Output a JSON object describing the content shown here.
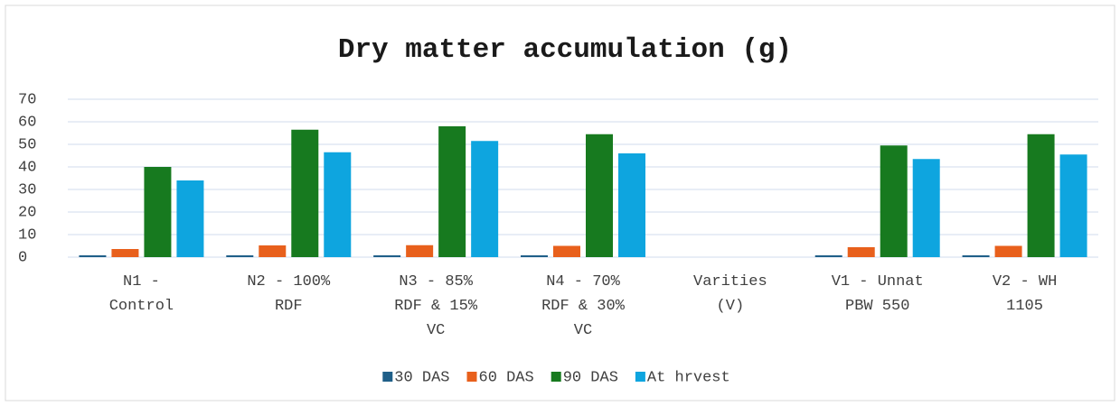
{
  "chart_data": {
    "type": "bar",
    "title": "Dry matter accumulation (g)",
    "categories": [
      "N1 - Control",
      "N2 - 100% RDF",
      "N3 - 85% RDF & 15% VC",
      "N4 - 70% RDF & 30% VC",
      "Varities (V)",
      "V1 - Unnat PBW 550",
      "V2 - WH 1105"
    ],
    "series": [
      {
        "name": "30 DAS",
        "color": "#1f5f88",
        "values": [
          0.8,
          0.8,
          0.8,
          0.8,
          null,
          0.8,
          0.8
        ]
      },
      {
        "name": "60 DAS",
        "color": "#e8601c",
        "values": [
          3.6,
          5.2,
          5.3,
          5.0,
          null,
          4.4,
          5.0
        ]
      },
      {
        "name": "90 DAS",
        "color": "#177a1f",
        "values": [
          40,
          56.5,
          58,
          54.5,
          null,
          49.5,
          54.5
        ]
      },
      {
        "name": "At hrvest",
        "color": "#0ea5df",
        "values": [
          34,
          46.5,
          51.5,
          46,
          null,
          43.5,
          45.5
        ]
      }
    ],
    "ylim": [
      0,
      70
    ],
    "yticks": [
      0,
      10,
      20,
      30,
      40,
      50,
      60,
      70
    ],
    "grid": true,
    "legend": "bottom"
  }
}
